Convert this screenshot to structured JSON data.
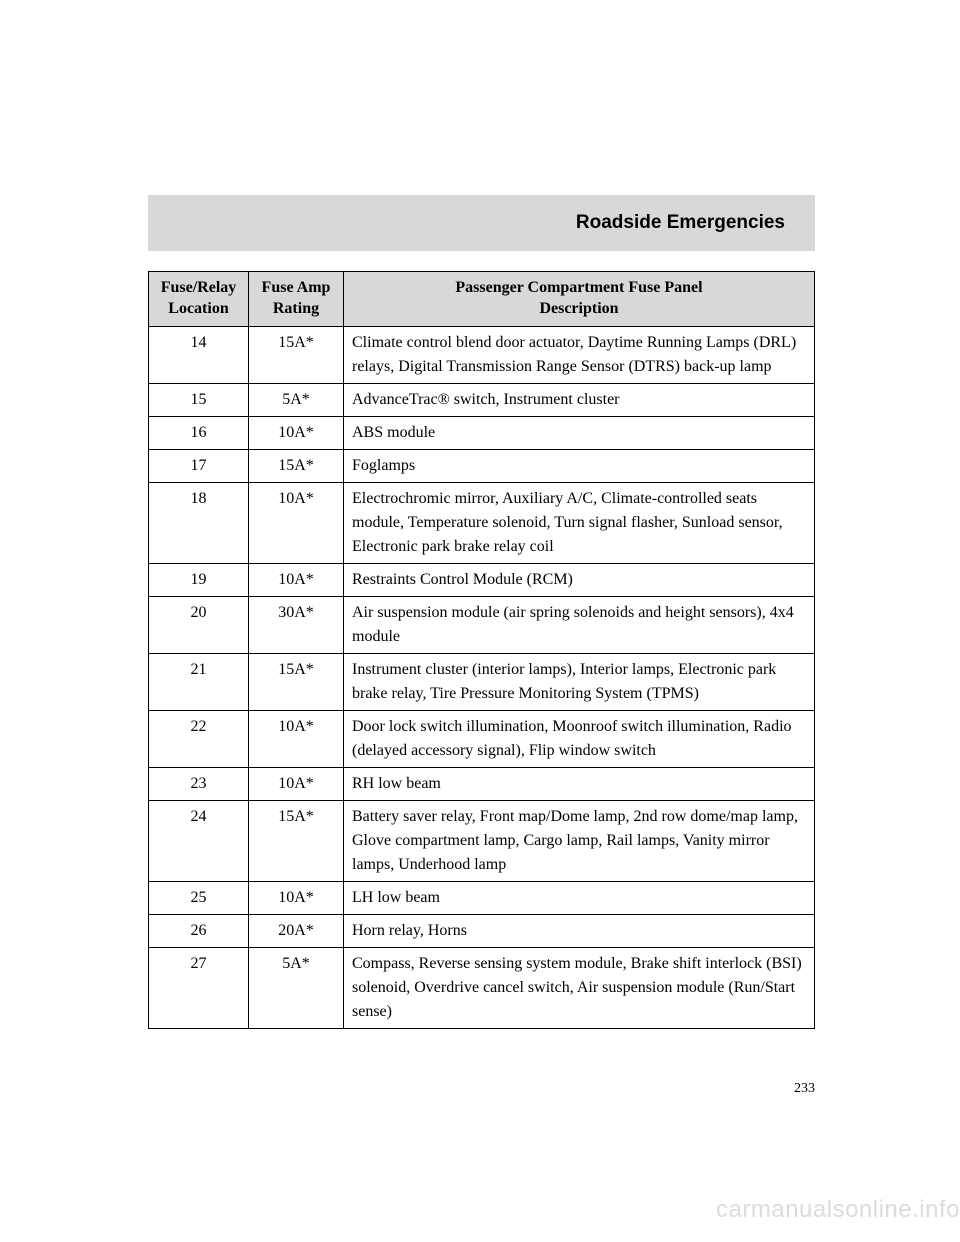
{
  "section_title": "Roadside Emergencies",
  "page_number": "233",
  "watermark": "carmanualsonline.info",
  "table": {
    "type": "table",
    "header_bg": "#d8d8d8",
    "border_color": "#000000",
    "font_size": 16,
    "columns": [
      {
        "key": "loc",
        "label_l1": "Fuse/Relay",
        "label_l2": "Location",
        "width": 100,
        "align": "center"
      },
      {
        "key": "amp",
        "label_l1": "Fuse Amp",
        "label_l2": "Rating",
        "width": 95,
        "align": "center"
      },
      {
        "key": "desc",
        "label_l1": "Passenger Compartment Fuse Panel",
        "label_l2": "Description",
        "align": "left"
      }
    ],
    "rows": [
      {
        "loc": "14",
        "amp": "15A*",
        "desc": "Climate control blend door actuator, Daytime Running Lamps (DRL) relays, Digital Transmission Range Sensor (DTRS) back-up lamp"
      },
      {
        "loc": "15",
        "amp": "5A*",
        "desc": "AdvanceTrac® switch, Instrument cluster"
      },
      {
        "loc": "16",
        "amp": "10A*",
        "desc": "ABS module"
      },
      {
        "loc": "17",
        "amp": "15A*",
        "desc": "Foglamps"
      },
      {
        "loc": "18",
        "amp": "10A*",
        "desc": "Electrochromic mirror, Auxiliary A/C, Climate-controlled seats module, Temperature solenoid, Turn signal flasher, Sunload sensor, Electronic park brake relay coil"
      },
      {
        "loc": "19",
        "amp": "10A*",
        "desc": "Restraints Control Module (RCM)"
      },
      {
        "loc": "20",
        "amp": "30A*",
        "desc": "Air suspension module (air spring solenoids and height sensors), 4x4 module"
      },
      {
        "loc": "21",
        "amp": "15A*",
        "desc": "Instrument cluster (interior lamps), Interior lamps, Electronic park brake relay, Tire Pressure Monitoring System (TPMS)"
      },
      {
        "loc": "22",
        "amp": "10A*",
        "desc": "Door lock switch illumination, Moonroof switch illumination, Radio (delayed accessory signal), Flip window switch"
      },
      {
        "loc": "23",
        "amp": "10A*",
        "desc": "RH low beam"
      },
      {
        "loc": "24",
        "amp": "15A*",
        "desc": "Battery saver relay, Front map/Dome lamp, 2nd row dome/map lamp, Glove compartment lamp, Cargo lamp, Rail lamps, Vanity mirror lamps, Underhood lamp"
      },
      {
        "loc": "25",
        "amp": "10A*",
        "desc": "LH low beam"
      },
      {
        "loc": "26",
        "amp": "20A*",
        "desc": "Horn relay, Horns"
      },
      {
        "loc": "27",
        "amp": "5A*",
        "desc": "Compass, Reverse sensing system module, Brake shift interlock (BSI) solenoid, Overdrive cancel switch, Air suspension module (Run/Start sense)"
      }
    ]
  }
}
